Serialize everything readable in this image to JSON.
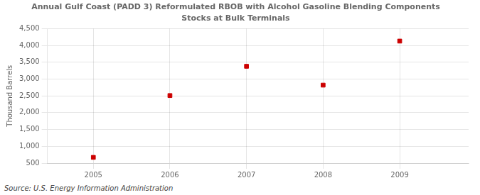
{
  "chart_data": {
    "type": "scatter",
    "title": "Annual Gulf Coast (PADD 3) Reformulated RBOB with Alcohol Gasoline Blending Components",
    "subtitle": "Stocks at Bulk Terminals",
    "ylabel": "Thousand Barrels",
    "source": "Source: U.S. Energy Information Administration",
    "x": [
      2005,
      2006,
      2007,
      2008,
      2009
    ],
    "values": [
      670,
      2510,
      3380,
      2820,
      4130
    ],
    "color": "#cc0000",
    "marker": "square",
    "xlim": [
      2004.4,
      2009.9
    ],
    "xticks": [
      2005,
      2006,
      2007,
      2008,
      2009
    ],
    "ylim": [
      500,
      4500
    ],
    "yticks": [
      500,
      {
        "value": 1000,
        "label": "1,000"
      },
      {
        "value": 1500,
        "label": "1,500"
      },
      {
        "value": 2000,
        "label": "2,000"
      },
      {
        "value": 2500,
        "label": "2,500"
      },
      {
        "value": 3000,
        "label": "3,000"
      },
      {
        "value": 3500,
        "label": "3,500"
      },
      {
        "value": 4000,
        "label": "4,000"
      },
      {
        "value": 4500,
        "label": "4,500"
      }
    ],
    "grid": true
  }
}
